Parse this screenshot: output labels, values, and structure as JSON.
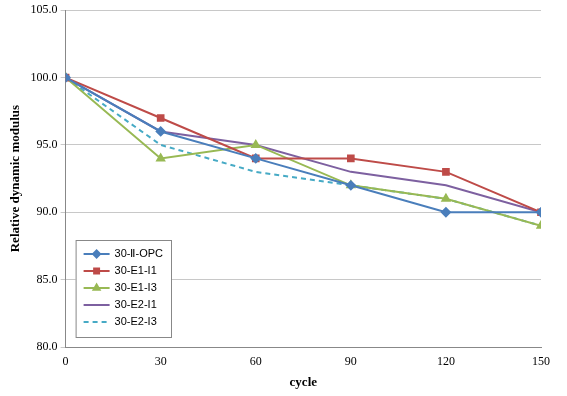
{
  "chart_data": {
    "type": "line",
    "x_label": "cycle",
    "y_label": "Relative dynamic modulus",
    "x": [
      0,
      30,
      60,
      90,
      120,
      150
    ],
    "xlim": [
      0,
      150
    ],
    "xticks": [
      0,
      30,
      60,
      90,
      120,
      150
    ],
    "ylim": [
      80,
      105
    ],
    "yticks": [
      {
        "value": 80,
        "label": "80.0"
      },
      {
        "value": 85,
        "label": "85.0"
      },
      {
        "value": 90,
        "label": "90.0"
      },
      {
        "value": 95,
        "label": "95.0"
      },
      {
        "value": 100,
        "label": "100.0"
      },
      {
        "value": 105,
        "label": "105.0"
      }
    ],
    "grid": "y",
    "legend": "bottom-left",
    "series": [
      {
        "name": "30-Ⅱ-OPC",
        "color": "#4a7ebb",
        "marker": "diamond",
        "line_style": "solid",
        "values": [
          100,
          96,
          94,
          92,
          90,
          90
        ]
      },
      {
        "name": "30-E1-I1",
        "color": "#be4b48",
        "marker": "square",
        "line_style": "solid",
        "values": [
          100,
          97,
          94,
          94,
          93,
          90
        ]
      },
      {
        "name": "30-E1-I3",
        "color": "#98b954",
        "marker": "triangle",
        "line_style": "solid",
        "values": [
          100,
          94,
          95,
          92,
          91,
          89
        ]
      },
      {
        "name": "30-E2-I1",
        "color": "#7d60a0",
        "marker": "none",
        "line_style": "solid",
        "values": [
          100,
          96,
          95,
          93,
          92,
          90
        ]
      },
      {
        "name": "30-E2-I3",
        "color": "#46aac5",
        "marker": "none",
        "line_style": "dashed",
        "values": [
          100,
          95,
          93,
          92,
          91,
          89
        ]
      }
    ]
  }
}
